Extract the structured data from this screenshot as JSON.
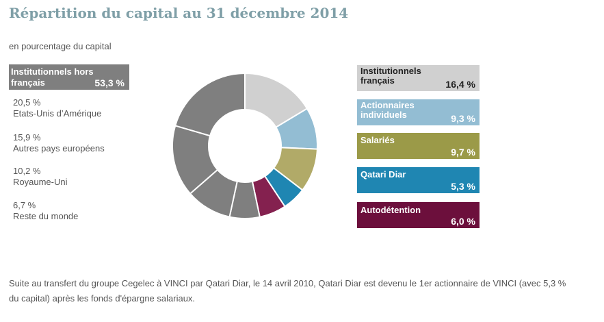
{
  "header": {
    "title": "Répartition du capital au 31 décembre 2014",
    "subtitle": "en pourcentage du capital"
  },
  "left_group": {
    "label_line1": "Institutionnels hors",
    "label_line2": "français",
    "percent": "53,3 %",
    "color": "#7f7f7f",
    "items": [
      {
        "percent": "20,5 %",
        "name": "Etats-Unis d’Amérique"
      },
      {
        "percent": "15,9 %",
        "name": "Autres pays européens"
      },
      {
        "percent": "10,2 %",
        "name": "Royaume-Uni"
      },
      {
        "percent": "6,7 %",
        "name": "Reste du monde"
      }
    ]
  },
  "legend": [
    {
      "label_line1": "Institutionnels",
      "label_line2": "français",
      "percent": "16,4 %",
      "bg": "#d0d0d0",
      "fg": "#222222"
    },
    {
      "label_line1": "Actionnaires",
      "label_line2": "individuels",
      "percent": "9,3 %",
      "bg": "#93bdd3",
      "fg": "#ffffff"
    },
    {
      "label_line1": "Salariés",
      "label_line2": "",
      "percent": "9,7 %",
      "bg": "#9b9a48",
      "fg": "#ffffff"
    },
    {
      "label_line1": "Qatari Diar",
      "label_line2": "",
      "percent": "5,3 %",
      "bg": "#1f86b2",
      "fg": "#ffffff"
    },
    {
      "label_line1": "Autodétention",
      "label_line2": "",
      "percent": "6,0 %",
      "bg": "#6c0f3c",
      "fg": "#ffffff"
    }
  ],
  "footnote": {
    "line1": "Suite au transfert du groupe Cegelec à VINCI par Qatari Diar, le 14 avril 2010, Qatari Diar est devenu le 1er actionnaire de VINCI (avec 5,3 %",
    "line2": "du capital) après les fonds d'épargne salariaux."
  },
  "chart_data": {
    "type": "pie",
    "title": "Répartition du capital au 31 décembre 2014",
    "unit": "%",
    "slices": [
      {
        "label": "Institutionnels français",
        "value": 16.4,
        "color": "#d0d0d0"
      },
      {
        "label": "Actionnaires individuels",
        "value": 9.3,
        "color": "#93bdd3"
      },
      {
        "label": "Salariés",
        "value": 9.7,
        "color": "#b1aa68"
      },
      {
        "label": "Qatari Diar",
        "value": 5.3,
        "color": "#1f86b2"
      },
      {
        "label": "Autodétention",
        "value": 6.0,
        "color": "#84214f"
      },
      {
        "label": "Reste du monde",
        "value": 6.7,
        "color": "#7f7f7f"
      },
      {
        "label": "Royaume-Uni",
        "value": 10.2,
        "color": "#7f7f7f"
      },
      {
        "label": "Autres pays européens",
        "value": 15.9,
        "color": "#7f7f7f"
      },
      {
        "label": "Etats-Unis d’Amérique",
        "value": 20.5,
        "color": "#7f7f7f"
      }
    ]
  }
}
